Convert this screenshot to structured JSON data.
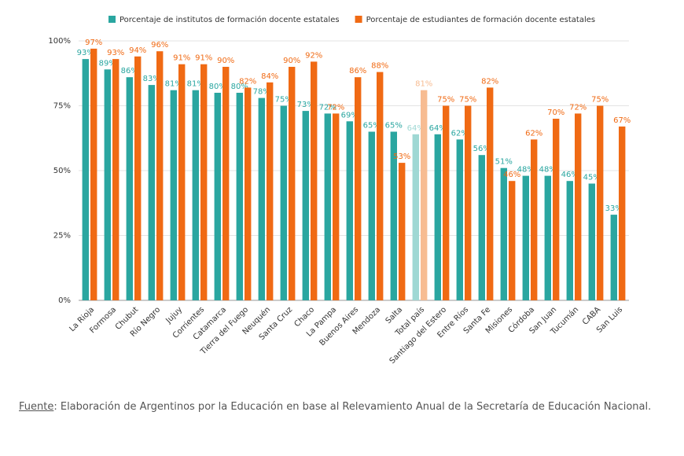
{
  "chart_data": {
    "type": "bar",
    "categories": [
      "La Rioja",
      "Formosa",
      "Chubut",
      "Río Negro",
      "Jujuy",
      "Corrientes",
      "Catamarca",
      "Tierra del Fuego",
      "Neuquén",
      "Santa Cruz",
      "Chaco",
      "La Pampa",
      "Buenos Aires",
      "Mendoza",
      "Salta",
      "Total país",
      "Santiago del Estero",
      "Entre Ríos",
      "Santa Fe",
      "Misiones",
      "Córdoba",
      "San Juan",
      "Tucumán",
      "CABA",
      "San Luis"
    ],
    "series": [
      {
        "name": "Porcentaje de institutos de formación docente estatales",
        "color": "#2aa6a0",
        "colors": [
          "#2aa6a0",
          "#2aa6a0",
          "#2aa6a0",
          "#2aa6a0",
          "#2aa6a0",
          "#2aa6a0",
          "#2aa6a0",
          "#2aa6a0",
          "#2aa6a0",
          "#2aa6a0",
          "#2aa6a0",
          "#2aa6a0",
          "#2aa6a0",
          "#2aa6a0",
          "#2aa6a0",
          "#9fd8d4",
          "#2aa6a0",
          "#2aa6a0",
          "#2aa6a0",
          "#2aa6a0",
          "#2aa6a0",
          "#2aa6a0",
          "#2aa6a0",
          "#2aa6a0",
          "#2aa6a0"
        ],
        "values": [
          93,
          89,
          86,
          83,
          81,
          81,
          80,
          80,
          78,
          75,
          73,
          72,
          69,
          65,
          65,
          64,
          64,
          62,
          56,
          51,
          48,
          48,
          46,
          45,
          33
        ],
        "value_labels": [
          "93%",
          "89%",
          "86%",
          "83%",
          "81%",
          "81%",
          "80%",
          "80%",
          "78%",
          "75%",
          "73%",
          "72%",
          "69%",
          "65%",
          "65%",
          "64%",
          "64%",
          "62%",
          "56%",
          "51%",
          "48%",
          "48%",
          "46%",
          "45%",
          "33%"
        ]
      },
      {
        "name": "Porcentaje de estudiantes de formación docente estatales",
        "color": "#f06a14",
        "colors": [
          "#f06a14",
          "#f06a14",
          "#f06a14",
          "#f06a14",
          "#f06a14",
          "#f06a14",
          "#f06a14",
          "#f06a14",
          "#f06a14",
          "#f06a14",
          "#f06a14",
          "#f06a14",
          "#f06a14",
          "#f06a14",
          "#f06a14",
          "#f7bc92",
          "#f06a14",
          "#f06a14",
          "#f06a14",
          "#f06a14",
          "#f06a14",
          "#f06a14",
          "#f06a14",
          "#f06a14",
          "#f06a14"
        ],
        "values": [
          97,
          93,
          94,
          96,
          91,
          91,
          90,
          82,
          84,
          90,
          92,
          72,
          86,
          88,
          53,
          81,
          75,
          75,
          82,
          46,
          62,
          70,
          72,
          75,
          67
        ],
        "value_labels": [
          "97%",
          "93%",
          "94%",
          "96%",
          "91%",
          "91%",
          "90%",
          "82%",
          "84%",
          "90%",
          "92%",
          "72%",
          "86%",
          "88%",
          "53%",
          "81%",
          "75%",
          "75%",
          "82%",
          "46%",
          "62%",
          "70%",
          "72%",
          "75%",
          "67%"
        ]
      }
    ],
    "ylim": [
      0,
      100
    ],
    "yticks": [
      {
        "value": 0,
        "label": "0%"
      },
      {
        "value": 25,
        "label": "25%"
      },
      {
        "value": 50,
        "label": "50%"
      },
      {
        "value": 75,
        "label": "75%"
      },
      {
        "value": 100,
        "label": "100%"
      }
    ],
    "grid": true,
    "legend": "top",
    "source_label": "Fuente",
    "source_text": ": Elaboración de Argentinos por la Educación en base al Relevamiento Anual de la Secretaría de Educación Nacional."
  }
}
